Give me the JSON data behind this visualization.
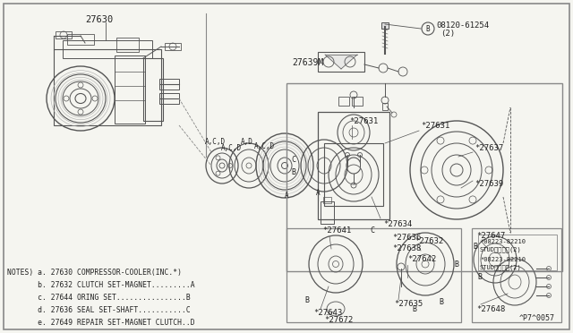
{
  "bg_color": "#f5f5f0",
  "line_color": "#555555",
  "text_color": "#222222",
  "border_color": "#777777",
  "notes": [
    "NOTES) a. 27630 COMPRESSOR-COOLER(INC.*)",
    "       b. 27632 CLUTCH SET-MAGNET.........A",
    "       c. 27644 ORING SET................B",
    "       d. 27636 SEAL SET-SHAFT...........C",
    "       e. 27649 REPAIR SET-MAGNET CLUTCH..D"
  ],
  "page_ref": "^P7^0057",
  "font": "monospace"
}
